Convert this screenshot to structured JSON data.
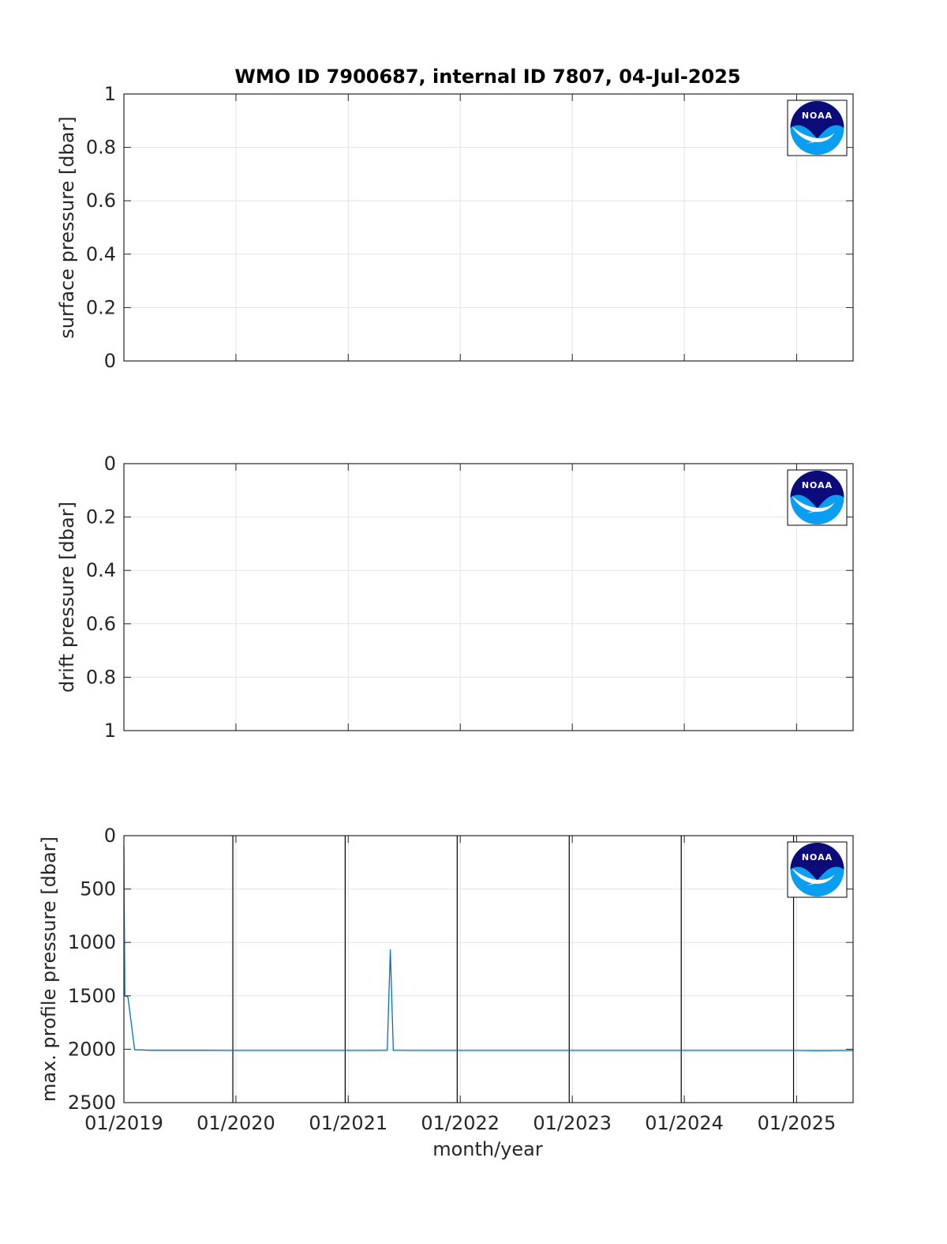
{
  "figure": {
    "title": "WMO ID 7900687, internal ID 7807, 04-Jul-2025",
    "xlabel": "month/year",
    "x_tick_labels": [
      "01/2019",
      "01/2020",
      "01/2021",
      "01/2022",
      "01/2023",
      "01/2024",
      "01/2025"
    ],
    "logo_text": "NOAA",
    "colors": {
      "series": "#0072bd",
      "axis": "#262626",
      "grid": "#e3e3e3",
      "vline": "#000000",
      "logo_dark": "#0b0b7a",
      "logo_light": "#0a9ef0"
    }
  },
  "chart_data": [
    {
      "type": "line",
      "ylabel": "surface pressure [dbar]",
      "ylim": [
        0,
        1
      ],
      "y_reversed": false,
      "y_ticks": [
        0,
        0.2,
        0.4,
        0.6,
        0.8,
        1
      ],
      "y_tick_labels": [
        "0",
        "0.2",
        "0.4",
        "0.6",
        "0.8",
        "1"
      ],
      "xlim": [
        "2019-01-01",
        "2025-07-04"
      ],
      "grid": true,
      "series": []
    },
    {
      "type": "line",
      "ylabel": "drift pressure [dbar]",
      "ylim": [
        0,
        1
      ],
      "y_reversed": true,
      "y_ticks": [
        0,
        0.2,
        0.4,
        0.6,
        0.8,
        1
      ],
      "y_tick_labels": [
        "0",
        "0.2",
        "0.4",
        "0.6",
        "0.8",
        "1"
      ],
      "xlim": [
        "2019-01-01",
        "2025-07-04"
      ],
      "grid": true,
      "series": []
    },
    {
      "type": "line",
      "ylabel": "max. profile pressure [dbar]",
      "ylim": [
        0,
        2500
      ],
      "y_reversed": true,
      "y_ticks": [
        0,
        500,
        1000,
        1500,
        2000,
        2500
      ],
      "y_tick_labels": [
        "0",
        "500",
        "1000",
        "1500",
        "2000",
        "2500"
      ],
      "xlim": [
        "2019-01-01",
        "2025-07-04"
      ],
      "grid": true,
      "year_lines": [
        "2019-12-22",
        "2020-12-22",
        "2021-12-22",
        "2022-12-22",
        "2023-12-22",
        "2024-12-22"
      ],
      "series": [
        {
          "x": [
            "2019-01-01",
            "2019-01-04",
            "2019-01-14",
            "2019-02-05",
            "2019-04-01",
            "2019-07-01",
            "2019-10-01",
            "2019-12-22",
            "2020-03-01",
            "2020-06-01",
            "2020-09-01",
            "2020-12-22",
            "2021-03-01",
            "2021-05-08",
            "2021-05-18",
            "2021-05-28",
            "2021-08-01",
            "2021-12-22",
            "2022-03-01",
            "2022-06-01",
            "2022-09-01",
            "2022-12-22",
            "2023-03-01",
            "2023-06-01",
            "2023-09-01",
            "2023-12-22",
            "2024-03-01",
            "2024-06-01",
            "2024-09-01",
            "2024-12-22",
            "2025-03-01",
            "2025-07-04"
          ],
          "y": [
            100,
            1500,
            1510,
            2005,
            2010,
            2010,
            2010,
            2012,
            2012,
            2012,
            2012,
            2012,
            2012,
            2010,
            1070,
            2010,
            2012,
            2012,
            2012,
            2012,
            2012,
            2012,
            2012,
            2012,
            2012,
            2012,
            2012,
            2012,
            2012,
            2012,
            2014,
            2012
          ]
        }
      ]
    }
  ]
}
